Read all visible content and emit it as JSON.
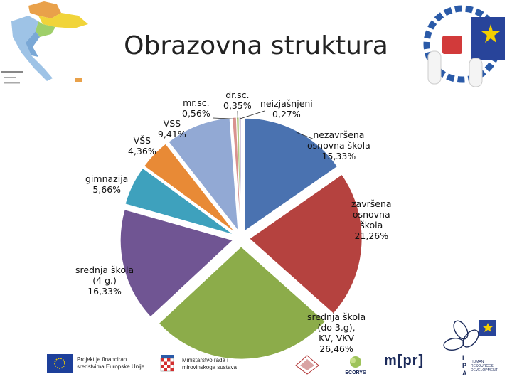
{
  "slide": {
    "title": "Obrazovna struktura"
  },
  "colors": {
    "blue": "#4a72b0",
    "red": "#b5423f",
    "green": "#8cac4a",
    "purple": "#705593",
    "teal": "#3ea1bd",
    "orange": "#e88a36",
    "lightblue": "#92a9d4",
    "pink": "#d9928f",
    "lightgreen": "#b4cb86",
    "lightpurple": "#a899c2"
  },
  "chart_data": {
    "type": "pie",
    "title": "",
    "slices": [
      {
        "label_lines": [
          "nezavršena",
          "osnovna škola"
        ],
        "value_text": "15,33%",
        "value": 15.33,
        "color": "#4a72b0"
      },
      {
        "label_lines": [
          "završena",
          "osnovna",
          "škola"
        ],
        "value_text": "21,26%",
        "value": 21.26,
        "color": "#b5423f"
      },
      {
        "label_lines": [
          "srednja škola",
          "(do 3.g),",
          "KV, VKV"
        ],
        "value_text": "26,46%",
        "value": 26.46,
        "color": "#8cac4a"
      },
      {
        "label_lines": [
          "srednja škola",
          "(4 g.)"
        ],
        "value_text": "16,33%",
        "value": 16.33,
        "color": "#705593"
      },
      {
        "label_lines": [
          "gimnazija"
        ],
        "value_text": "5,66%",
        "value": 5.66,
        "color": "#3ea1bd"
      },
      {
        "label_lines": [
          "VŠS"
        ],
        "value_text": "4,36%",
        "value": 4.36,
        "color": "#e88a36"
      },
      {
        "label_lines": [
          "VSS"
        ],
        "value_text": "9,41%",
        "value": 9.41,
        "color": "#92a9d4"
      },
      {
        "label_lines": [
          "mr.sc."
        ],
        "value_text": "0,56%",
        "value": 0.56,
        "color": "#d9928f"
      },
      {
        "label_lines": [
          "dr.sc."
        ],
        "value_text": "0,35%",
        "value": 0.35,
        "color": "#b4cb86"
      },
      {
        "label_lines": [
          "neizjašnjeni"
        ],
        "value_text": "0,27%",
        "value": 0.27,
        "color": "#a899c2"
      }
    ]
  },
  "footer": {
    "eu_line1": "Projekt je financiran",
    "eu_line2": "sredstvima Europske Unije",
    "ministry_line1": "Ministarstvo rada i",
    "ministry_line2": "mirovinskoga sustava",
    "ecorys": "ECORYS",
    "mpr": "m[pr]",
    "hrd_line1": "HUMAN",
    "hrd_line2": "RESOURCES",
    "hrd_line3": "DEVELOPMENT",
    "ipa_i": "I",
    "ipa_p": "P",
    "ipa_a": "A"
  }
}
